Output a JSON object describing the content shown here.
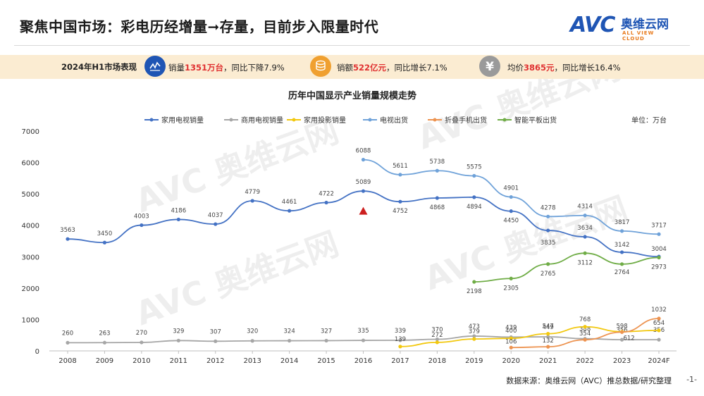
{
  "header": {
    "title": "聚焦中国市场：彩电历经增量➞存量，目前步入限量时代",
    "logo_text": "AVC",
    "logo_cn": "奥维云网",
    "logo_en": "ALL VIEW CLOUD"
  },
  "summary": {
    "label": "2024年H1市场表现",
    "items": [
      {
        "icon": "chart-line-icon",
        "color": "#1f55b4",
        "prefix": "销量",
        "highlight": "1351万台",
        "suffix": "，同比下降7.9%"
      },
      {
        "icon": "coin-stack-icon",
        "color": "#f0a030",
        "prefix": "销额",
        "highlight": "522亿元",
        "suffix": "，同比增长7.1%"
      },
      {
        "icon": "yen-icon",
        "color": "#9a9a9a",
        "prefix": "均价",
        "highlight": "3865元",
        "suffix": "，同比增长16.4%"
      }
    ]
  },
  "watermark": {
    "text": "AVC 奥维云网",
    "sub": "ALL VIEW CLOUD"
  },
  "chart_data": {
    "type": "line",
    "title": "历年中国显示产业销量规模走势",
    "unit_label": "单位：万台",
    "categories": [
      "2008",
      "2009",
      "2010",
      "2011",
      "2012",
      "2013",
      "2014",
      "2015",
      "2016",
      "2017",
      "2018",
      "2019",
      "2020",
      "2021",
      "2022",
      "2023",
      "2024F"
    ],
    "ylim": [
      0,
      7000
    ],
    "yticks": [
      0,
      1000,
      2000,
      3000,
      4000,
      5000,
      6000,
      7000
    ],
    "legend_position": "top",
    "grid": false,
    "marker": {
      "type": "triangle",
      "category": "2016",
      "color": "#cc1f1f"
    },
    "series": [
      {
        "name": "家用电视销量",
        "color": "#4472c4",
        "values": [
          3563,
          3450,
          4003,
          4186,
          4037,
          4779,
          4461,
          4722,
          5089,
          4752,
          4868,
          4894,
          4450,
          3835,
          3634,
          3142,
          3004
        ]
      },
      {
        "name": "商用电视销量",
        "color": "#a6a6a6",
        "values": [
          260,
          263,
          270,
          329,
          307,
          320,
          324,
          327,
          335,
          339,
          370,
          473,
          439,
          449,
          388,
          356,
          356
        ]
      },
      {
        "name": "家用投影销量",
        "color": "#f2c80f",
        "values": [
          null,
          null,
          null,
          null,
          null,
          null,
          null,
          null,
          null,
          139,
          272,
          379,
          400,
          547,
          768,
          612,
          654
        ]
      },
      {
        "name": "电视出货",
        "color": "#6fa2d9",
        "values": [
          null,
          null,
          null,
          null,
          null,
          null,
          null,
          null,
          6088,
          5611,
          5738,
          5575,
          4901,
          4278,
          4314,
          3817,
          3717
        ]
      },
      {
        "name": "折叠手机出货",
        "color": "#ed9350",
        "values": [
          null,
          null,
          null,
          null,
          null,
          null,
          null,
          null,
          null,
          null,
          null,
          null,
          106,
          132,
          354,
          598,
          1032
        ]
      },
      {
        "name": "智能平板出货",
        "color": "#70ad47",
        "values": [
          null,
          null,
          null,
          null,
          null,
          null,
          null,
          null,
          null,
          null,
          null,
          2198,
          2305,
          2765,
          3112,
          2764,
          2973
        ]
      }
    ]
  },
  "footer": {
    "source": "数据来源：奥维云网（AVC）推总数据/研究整理",
    "page": "-1-"
  }
}
